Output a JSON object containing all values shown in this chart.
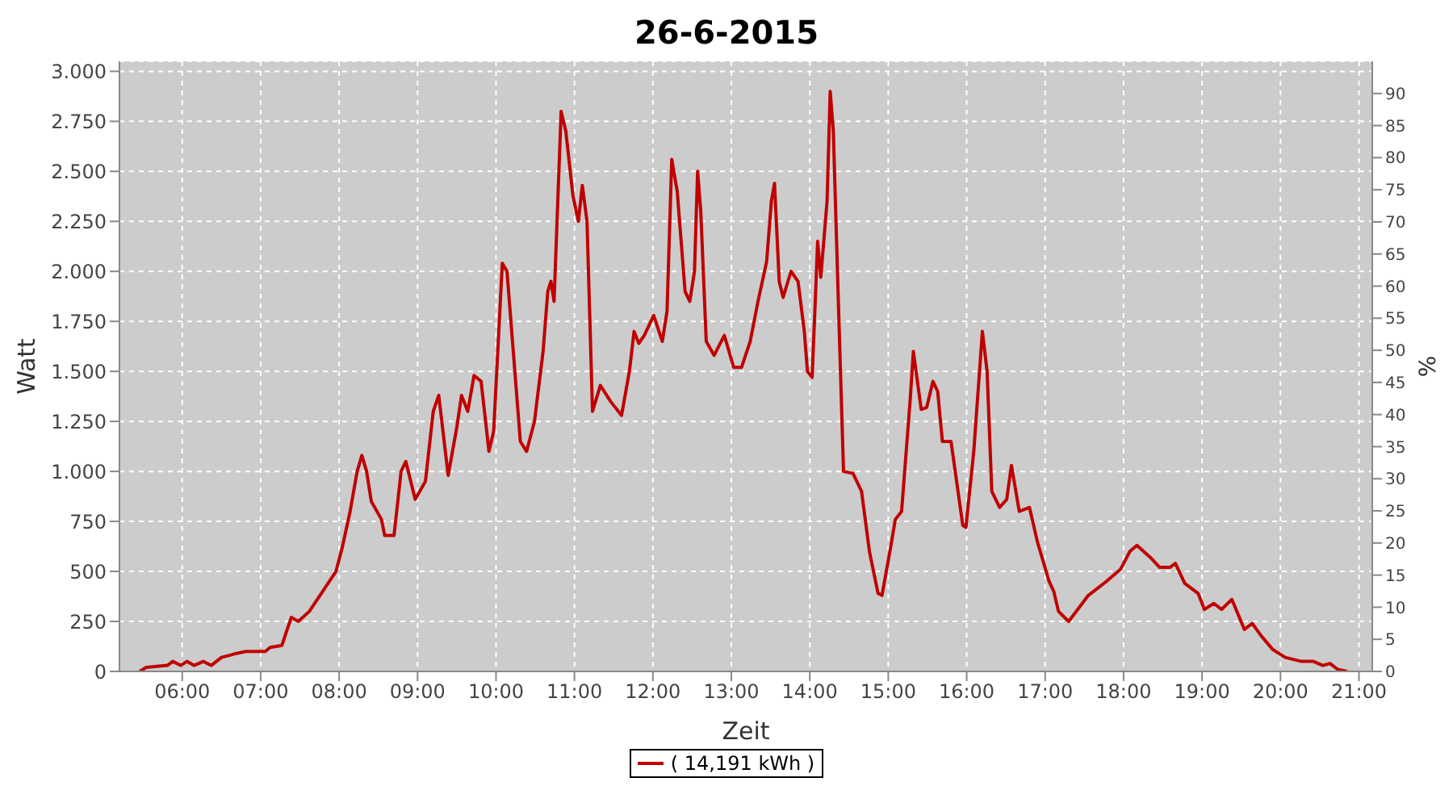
{
  "chart_data": {
    "type": "line",
    "title": "26-6-2015",
    "xlabel": "Zeit",
    "ylabel": "Watt",
    "y2label": "%",
    "x": [
      5.46,
      5.54,
      5.81,
      5.88,
      5.98,
      6.06,
      6.15,
      6.27,
      6.37,
      6.5,
      6.6,
      6.69,
      6.81,
      7.06,
      7.12,
      7.27,
      7.33,
      7.39,
      7.48,
      7.62,
      7.79,
      7.96,
      8.04,
      8.14,
      8.23,
      8.29,
      8.35,
      8.41,
      8.54,
      8.58,
      8.7,
      8.79,
      8.85,
      8.97,
      9.1,
      9.2,
      9.27,
      9.39,
      9.5,
      9.56,
      9.64,
      9.72,
      9.81,
      9.91,
      9.97,
      10.08,
      10.14,
      10.22,
      10.31,
      10.39,
      10.49,
      10.6,
      10.66,
      10.7,
      10.74,
      10.83,
      10.89,
      10.98,
      11.05,
      11.1,
      11.16,
      11.23,
      11.33,
      11.46,
      11.6,
      11.7,
      11.76,
      11.82,
      11.89,
      12.01,
      12.12,
      12.18,
      12.24,
      12.31,
      12.41,
      12.47,
      12.53,
      12.57,
      12.61,
      12.68,
      12.78,
      12.91,
      13.03,
      13.13,
      13.24,
      13.34,
      13.45,
      13.51,
      13.55,
      13.61,
      13.66,
      13.76,
      13.85,
      13.93,
      13.97,
      14.03,
      14.1,
      14.14,
      14.22,
      14.26,
      14.3,
      14.36,
      14.43,
      14.55,
      14.66,
      14.76,
      14.87,
      14.92,
      15.03,
      15.09,
      15.17,
      15.28,
      15.32,
      15.42,
      15.49,
      15.57,
      15.63,
      15.69,
      15.8,
      15.95,
      15.99,
      16.09,
      16.2,
      16.26,
      16.32,
      16.42,
      16.51,
      16.57,
      16.67,
      16.8,
      16.9,
      17.05,
      17.11,
      17.17,
      17.3,
      17.55,
      17.78,
      17.96,
      18.08,
      18.17,
      18.34,
      18.46,
      18.59,
      18.66,
      18.78,
      18.95,
      19.03,
      19.15,
      19.25,
      19.38,
      19.54,
      19.64,
      19.75,
      19.9,
      20.06,
      20.27,
      20.42,
      20.54,
      20.63,
      20.73,
      20.85
    ],
    "series": [
      {
        "name": "( 14,191 kWh )",
        "color": "#c00000",
        "values": [
          0,
          20,
          30,
          50,
          30,
          50,
          30,
          50,
          30,
          70,
          80,
          90,
          100,
          100,
          120,
          130,
          200,
          270,
          250,
          300,
          400,
          500,
          620,
          800,
          1000,
          1080,
          1000,
          850,
          760,
          680,
          680,
          1000,
          1050,
          860,
          950,
          1300,
          1380,
          980,
          1220,
          1380,
          1300,
          1480,
          1450,
          1100,
          1200,
          2040,
          2000,
          1600,
          1150,
          1100,
          1250,
          1600,
          1900,
          1950,
          1850,
          2800,
          2700,
          2380,
          2250,
          2430,
          2250,
          1300,
          1430,
          1350,
          1280,
          1500,
          1700,
          1640,
          1680,
          1780,
          1650,
          1800,
          2560,
          2400,
          1900,
          1850,
          2000,
          2500,
          2300,
          1650,
          1580,
          1680,
          1520,
          1520,
          1650,
          1850,
          2050,
          2350,
          2440,
          1950,
          1870,
          2000,
          1950,
          1700,
          1500,
          1470,
          2150,
          1970,
          2350,
          2900,
          2700,
          1900,
          1000,
          990,
          900,
          600,
          390,
          380,
          620,
          760,
          800,
          1360,
          1600,
          1310,
          1320,
          1450,
          1400,
          1150,
          1150,
          730,
          720,
          1100,
          1700,
          1500,
          900,
          820,
          860,
          1030,
          800,
          820,
          650,
          450,
          400,
          300,
          250,
          380,
          450,
          510,
          600,
          630,
          570,
          520,
          520,
          540,
          440,
          390,
          310,
          340,
          310,
          360,
          210,
          240,
          180,
          110,
          70,
          50,
          50,
          30,
          40,
          10,
          0
        ]
      }
    ],
    "xlim": [
      5.2,
      21.17
    ],
    "xticks": [
      {
        "value": 6,
        "label": "06:00"
      },
      {
        "value": 7,
        "label": "07:00"
      },
      {
        "value": 8,
        "label": "08:00"
      },
      {
        "value": 9,
        "label": "09:00"
      },
      {
        "value": 10,
        "label": "10:00"
      },
      {
        "value": 11,
        "label": "11:00"
      },
      {
        "value": 12,
        "label": "12:00"
      },
      {
        "value": 13,
        "label": "13:00"
      },
      {
        "value": 14,
        "label": "14:00"
      },
      {
        "value": 15,
        "label": "15:00"
      },
      {
        "value": 16,
        "label": "16:00"
      },
      {
        "value": 17,
        "label": "17:00"
      },
      {
        "value": 18,
        "label": "18:00"
      },
      {
        "value": 19,
        "label": "19:00"
      },
      {
        "value": 20,
        "label": "20:00"
      },
      {
        "value": 21,
        "label": "21:00"
      }
    ],
    "ylim": [
      0,
      3050
    ],
    "yticks": [
      0,
      250,
      500,
      750,
      {
        "value": 1000,
        "label": "1.000"
      },
      {
        "value": 1250,
        "label": "1.250"
      },
      {
        "value": 1500,
        "label": "1.500"
      },
      {
        "value": 1750,
        "label": "1.750"
      },
      {
        "value": 2000,
        "label": "2.000"
      },
      {
        "value": 2250,
        "label": "2.250"
      },
      {
        "value": 2500,
        "label": "2.500"
      },
      {
        "value": 2750,
        "label": "2.750"
      },
      {
        "value": 3000,
        "label": "3.000"
      }
    ],
    "y2lim": [
      0,
      95
    ],
    "y2ticks": [
      0,
      5,
      10,
      15,
      20,
      25,
      30,
      35,
      40,
      45,
      50,
      55,
      60,
      65,
      70,
      75,
      80,
      85,
      90
    ],
    "grid": true,
    "legend": "bottom",
    "marker": "none",
    "line_style": "solid"
  }
}
